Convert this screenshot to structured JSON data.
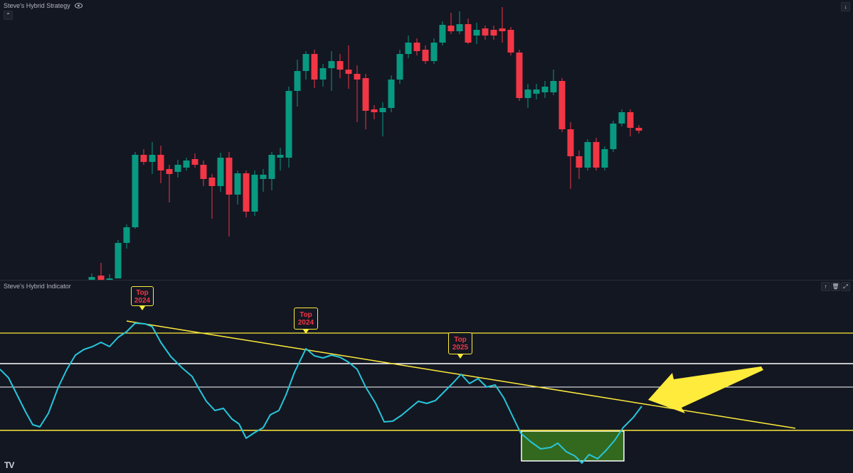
{
  "top_pane": {
    "title": "Steve's Hybrid Strategy"
  },
  "bottom_pane": {
    "title": "Steve's Hybrid Indicator"
  },
  "labels": [
    {
      "line1": "Top",
      "line2": "2024"
    },
    {
      "line1": "Top",
      "line2": "2024"
    },
    {
      "line1": "Top",
      "line2": "2025"
    }
  ],
  "icons": {
    "visibility": "eye-icon",
    "collapse": "arrow-up-icon",
    "expand": "arrow-down-icon",
    "delete": "trash-icon",
    "maximize": "maximize-icon",
    "brand": "tradingview-logo"
  },
  "colors": {
    "background": "#131722",
    "bull": "#089981",
    "bear": "#f23645",
    "indicator": "#26c6da",
    "level": "#ffeb3b",
    "white": "#ffffff",
    "zone_fill": "#33691e"
  },
  "logo_text": "TV"
}
